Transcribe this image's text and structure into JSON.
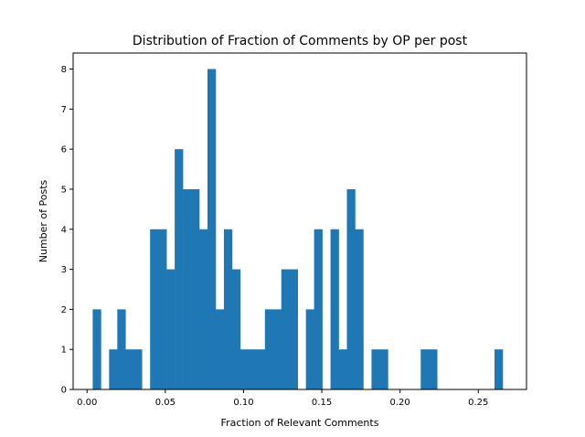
{
  "chart_data": {
    "type": "bar",
    "title": "Distribution of Fraction of Comments by OP per post",
    "xlabel": "Fraction of Relevant Comments",
    "ylabel": "Number of Posts",
    "xlim": [
      -0.0089,
      0.2808
    ],
    "ylim": [
      0,
      8.4
    ],
    "xticks": [
      0.0,
      0.05,
      0.1,
      0.15,
      0.2,
      0.25
    ],
    "xtick_labels": [
      "0.00",
      "0.05",
      "0.10",
      "0.15",
      "0.20",
      "0.25"
    ],
    "yticks": [
      0,
      1,
      2,
      3,
      4,
      5,
      6,
      7,
      8
    ],
    "ytick_labels": [
      "0",
      "1",
      "2",
      "3",
      "4",
      "5",
      "6",
      "7",
      "8"
    ],
    "bin_start": 0.0036,
    "bin_width": 0.00524,
    "values": [
      2,
      0,
      1,
      2,
      1,
      1,
      0,
      4,
      4,
      3,
      6,
      5,
      5,
      4,
      8,
      2,
      4,
      3,
      1,
      1,
      1,
      2,
      2,
      3,
      3,
      0,
      2,
      4,
      0,
      4,
      1,
      5,
      4,
      0,
      1,
      1,
      0,
      0,
      0,
      0,
      1,
      1,
      0,
      0,
      0,
      0,
      0,
      0,
      0,
      1
    ],
    "grid": false,
    "legend": "none",
    "bar_color": "#1f77b4"
  }
}
